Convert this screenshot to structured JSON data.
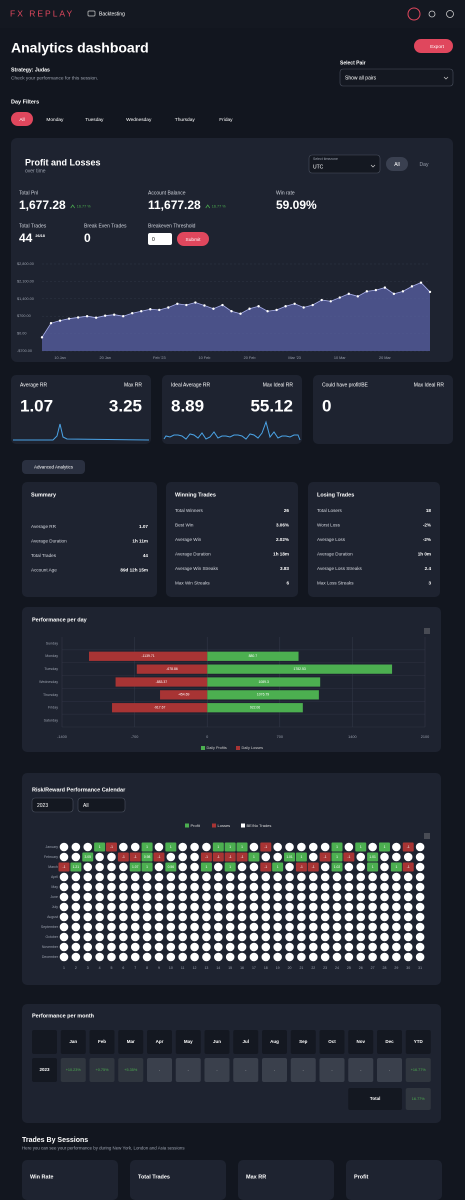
{
  "header": {
    "logo": "FX REPLAY",
    "nav": "Backtesting"
  },
  "page": {
    "title": "Analytics dashboard",
    "export": "Export",
    "strategy": "Strategy: Judas",
    "subtitle": "Check your performance for this session.",
    "pair_label": "Select Pair",
    "pair_value": "Show all pairs"
  },
  "day_filters": {
    "label": "Day Filters",
    "options": [
      "All",
      "Monday",
      "Tuesday",
      "Wednesday",
      "Thursday",
      "Friday"
    ]
  },
  "pnl": {
    "title": "Profit and Losses",
    "subtitle": "over time",
    "timezone_label": "Select timezone",
    "timezone": "UTC",
    "range": [
      "All",
      "Day"
    ],
    "stats": [
      {
        "label": "Total Pnl",
        "value": "1,677.28",
        "badge": "16.77 %"
      },
      {
        "label": "Account Balance",
        "value": "11,677.28",
        "badge": "16.77 %"
      },
      {
        "label": "Win rate",
        "value": "59.09%"
      },
      {
        "label": "Total Trades",
        "value": "44",
        "note": "26/18"
      },
      {
        "label": "Break Even Trades",
        "value": "0"
      }
    ],
    "threshold_label": "Breakeven Threshold",
    "threshold_value": "0",
    "submit": "Submit"
  },
  "chart_data": [
    {
      "type": "line",
      "categories": [
        null,
        null,
        "10 Jan",
        null,
        null,
        null,
        null,
        "20 Jan",
        null,
        null,
        null,
        null,
        null,
        "Feb '23",
        null,
        null,
        null,
        null,
        "10 Feb",
        null,
        null,
        null,
        null,
        "20 Feb",
        null,
        null,
        null,
        null,
        "Mar '23",
        null,
        null,
        null,
        null,
        "10 Mar",
        null,
        null,
        null,
        null,
        "20 Mar",
        null,
        null,
        null,
        null,
        null
      ],
      "values": [
        -150,
        420,
        520,
        600,
        650,
        700,
        640,
        720,
        760,
        700,
        820,
        900,
        980,
        950,
        1050,
        1200,
        1150,
        1250,
        1130,
        1000,
        1150,
        900,
        800,
        1000,
        1100,
        900,
        950,
        1100,
        1200,
        1050,
        1150,
        1350,
        1300,
        1450,
        1600,
        1500,
        1700,
        1750,
        1850,
        1600,
        1700,
        1900,
        2050,
        1677.28
      ],
      "color": "#aab0ea",
      "fill": "#5a61a6",
      "ylim": [
        -700,
        2800
      ],
      "yticks": [
        {
          "value": -700,
          "label": "-$700.00"
        },
        {
          "value": 0,
          "label": "$0.00"
        },
        {
          "value": 700,
          "label": "$700.00"
        },
        {
          "value": 1400,
          "label": "$1,400.00"
        },
        {
          "value": 2100,
          "label": "$2,100.00"
        },
        {
          "value": 2800,
          "label": "$2,800.00"
        }
      ],
      "grid": true
    },
    {
      "type": "bar",
      "orientation": "horizontal",
      "title": "Performance per day",
      "categories": [
        "Sunday",
        "Monday",
        "Tuesday",
        "Wednesday",
        "Thursday",
        "Friday",
        "Saturday"
      ],
      "series": [
        {
          "name": "Daily Profits",
          "color": "#4caf50",
          "values": [
            null,
            880.7,
            1782.53,
            1089.3,
            1076.79,
            922.06,
            null
          ]
        },
        {
          "name": "Daily Losses",
          "color": "#a83434",
          "values": [
            null,
            -1139.71,
            -678.86,
            -883.37,
            -454.69,
            -917.67,
            null
          ]
        }
      ],
      "xlim": [
        -1400,
        2100
      ],
      "xticks": [
        -1400,
        -700,
        0,
        700,
        1400,
        2100
      ],
      "grid": true
    }
  ],
  "rr_cards": [
    {
      "items": [
        {
          "label": "Average RR",
          "value": "1.07"
        },
        {
          "label": "Max RR",
          "value": "3.25"
        }
      ]
    },
    {
      "items": [
        {
          "label": "Ideal Average RR",
          "value": "8.89"
        },
        {
          "label": "Max Ideal RR",
          "value": "55.12"
        }
      ]
    },
    {
      "items": [
        {
          "label": "Could have profit/BE",
          "value": "0"
        },
        {
          "label": "Max Ideal RR"
        }
      ]
    }
  ],
  "advanced": "Advanced Analytics",
  "summary_cards": [
    {
      "title": "Summary",
      "rows": [
        [
          "Average RR",
          "1.07"
        ],
        [
          "Average Duration",
          "1h 11m"
        ],
        [
          "Total Trades",
          "44"
        ],
        [
          "Account Age",
          "89d 12h 15m"
        ]
      ]
    },
    {
      "title": "Winning Trades",
      "rows": [
        [
          "Total Winners",
          "26"
        ],
        [
          "Best Win",
          "3.06%"
        ],
        [
          "Average Win",
          "2.02%"
        ],
        [
          "Average Duration",
          "1h 18m"
        ],
        [
          "Average Win Streaks",
          "3.83"
        ],
        [
          "Max Win Streaks",
          "6"
        ]
      ]
    },
    {
      "title": "Losing Trades",
      "rows": [
        [
          "Total Losers",
          "18"
        ],
        [
          "Worst Loss",
          "-2%"
        ],
        [
          "Average Loss",
          "-2%"
        ],
        [
          "Average Duration",
          "1h 0m"
        ],
        [
          "Average Loss Streaks",
          "2.4"
        ],
        [
          "Max Loss Streaks",
          "3"
        ]
      ]
    }
  ],
  "calendar": {
    "title": "Risk/Reward Performance Calendar",
    "year_select": "2023",
    "filter_select": "All",
    "legend": [
      {
        "name": "Profit",
        "color": "#4caf50"
      },
      {
        "name": "Losses",
        "color": "#a83434"
      },
      {
        "name": "BE/No Trades",
        "color": "#ffffff"
      }
    ],
    "months": [
      "January",
      "February",
      "March",
      "April",
      "May",
      "June",
      "July",
      "August",
      "September",
      "October",
      "November",
      "December"
    ],
    "days": [
      1,
      2,
      3,
      4,
      5,
      6,
      7,
      8,
      9,
      10,
      11,
      12,
      13,
      14,
      15,
      16,
      17,
      18,
      19,
      20,
      21,
      22,
      23,
      24,
      25,
      26,
      27,
      28,
      29,
      30,
      31
    ],
    "cells": [
      {
        "month": 0,
        "day": 4,
        "value": 1
      },
      {
        "month": 0,
        "day": 5,
        "value": -1
      },
      {
        "month": 0,
        "day": 8,
        "value": 1
      },
      {
        "month": 0,
        "day": 10,
        "value": 1
      },
      {
        "month": 0,
        "day": 14,
        "value": 1
      },
      {
        "month": 0,
        "day": 15,
        "value": 1
      },
      {
        "month": 0,
        "day": 16,
        "value": 1
      },
      {
        "month": 0,
        "day": 18,
        "value": -1
      },
      {
        "month": 0,
        "day": 24,
        "value": 1
      },
      {
        "month": 0,
        "day": 26,
        "value": 1
      },
      {
        "month": 0,
        "day": 28,
        "value": 1
      },
      {
        "month": 0,
        "day": 30,
        "value": -1
      },
      {
        "month": 1,
        "day": 3,
        "value": 3.05
      },
      {
        "month": 1,
        "day": 6,
        "value": -1
      },
      {
        "month": 1,
        "day": 7,
        "value": -1
      },
      {
        "month": 1,
        "day": 8,
        "value": 0.98
      },
      {
        "month": 1,
        "day": 9,
        "value": -1
      },
      {
        "month": 1,
        "day": 13,
        "value": -1
      },
      {
        "month": 1,
        "day": 14,
        "value": -1
      },
      {
        "month": 1,
        "day": 15,
        "value": -1
      },
      {
        "month": 1,
        "day": 16,
        "value": -1
      },
      {
        "month": 1,
        "day": 17,
        "value": 1
      },
      {
        "month": 1,
        "day": 20,
        "value": 1.01
      },
      {
        "month": 1,
        "day": 21,
        "value": 1
      },
      {
        "month": 1,
        "day": 23,
        "value": -1
      },
      {
        "month": 1,
        "day": 24,
        "value": 1
      },
      {
        "month": 1,
        "day": 25,
        "value": -1
      },
      {
        "month": 1,
        "day": 27,
        "value": 1.01
      },
      {
        "month": 2,
        "day": 1,
        "value": -1
      },
      {
        "month": 2,
        "day": 2,
        "value": 1.21
      },
      {
        "month": 2,
        "day": 7,
        "value": 1.07
      },
      {
        "month": 2,
        "day": 8,
        "value": 1
      },
      {
        "month": 2,
        "day": 10,
        "value": 0.56
      },
      {
        "month": 2,
        "day": 13,
        "value": 1
      },
      {
        "month": 2,
        "day": 15,
        "value": 1
      },
      {
        "month": 2,
        "day": 18,
        "value": -1
      },
      {
        "month": 2,
        "day": 19,
        "value": 1
      },
      {
        "month": 2,
        "day": 21,
        "value": -1
      },
      {
        "month": 2,
        "day": 22,
        "value": -1
      },
      {
        "month": 2,
        "day": 24,
        "value": 1.02
      },
      {
        "month": 2,
        "day": 27,
        "value": 1
      },
      {
        "month": 2,
        "day": 29,
        "value": 1
      },
      {
        "month": 2,
        "day": 30,
        "value": -1
      }
    ]
  },
  "monthly": {
    "title": "Performance per month",
    "columns": [
      "Jan",
      "Feb",
      "Mar",
      "Apr",
      "May",
      "Jun",
      "Jul",
      "Aug",
      "Sep",
      "Oct",
      "Nov",
      "Dec",
      "YTD"
    ],
    "rows": [
      {
        "year": "2023",
        "values": [
          "+10.23%",
          "+0.75%",
          "+5.35%",
          "-",
          "-",
          "-",
          "-",
          "-",
          "-",
          "-",
          "-",
          "-",
          "+16.77%"
        ]
      }
    ],
    "total_label": "Total",
    "total_value": "16.77%"
  },
  "sessions": {
    "title": "Trades By Sessions",
    "subtitle": "Here you can see your performance by during New York, London and Asia sessions",
    "cards": [
      "Win Rate",
      "Total Trades",
      "Max RR",
      "Profit"
    ]
  }
}
